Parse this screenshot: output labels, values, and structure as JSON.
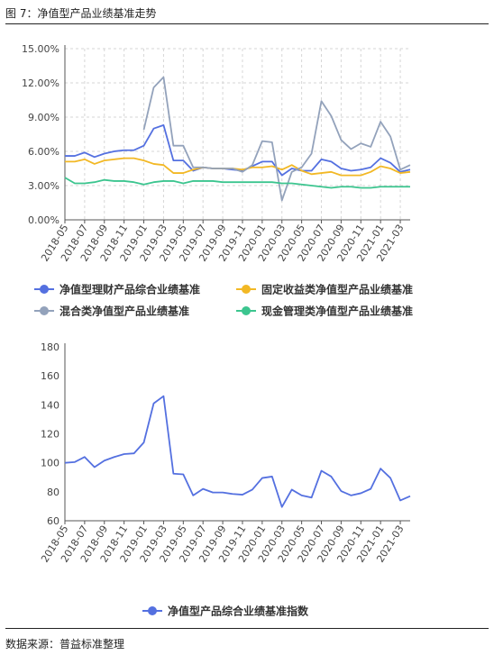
{
  "figure": {
    "title": "图 7：净值型产品业绩基准走势",
    "source": "数据来源：普益标准整理"
  },
  "chart_data": [
    {
      "type": "line",
      "x": [
        "2018-05",
        "2018-06",
        "2018-07",
        "2018-08",
        "2018-09",
        "2018-10",
        "2018-11",
        "2018-12",
        "2019-01",
        "2019-02",
        "2019-03",
        "2019-04",
        "2019-05",
        "2019-06",
        "2019-07",
        "2019-08",
        "2019-09",
        "2019-10",
        "2019-11",
        "2019-12",
        "2020-01",
        "2020-02",
        "2020-03",
        "2020-04",
        "2020-05",
        "2020-06",
        "2020-07",
        "2020-08",
        "2020-09",
        "2020-10",
        "2020-11",
        "2020-12",
        "2021-01",
        "2021-02",
        "2021-03",
        "2021-04"
      ],
      "tick_labels": [
        "2018-05",
        "2018-07",
        "2018-09",
        "2018-11",
        "2019-01",
        "2019-03",
        "2019-05",
        "2019-07",
        "2019-09",
        "2019-11",
        "2020-01",
        "2020-03",
        "2020-05",
        "2020-07",
        "2020-09",
        "2020-11",
        "2021-01",
        "2021-03"
      ],
      "y_ticks": [
        "0.00%",
        "3.00%",
        "6.00%",
        "9.00%",
        "12.00%",
        "15.00%"
      ],
      "ylim": [
        0,
        15
      ],
      "grid": true,
      "legend_position": "bottom",
      "series": [
        {
          "name": "净值型理财产品综合业绩基准",
          "color": "#5470e0",
          "values": [
            5.6,
            5.6,
            5.9,
            5.5,
            5.8,
            6.0,
            6.1,
            6.1,
            6.5,
            8.0,
            8.3,
            5.2,
            5.2,
            4.3,
            4.6,
            4.5,
            4.5,
            4.4,
            4.3,
            4.7,
            5.1,
            5.1,
            3.9,
            4.5,
            4.3,
            4.3,
            5.3,
            5.1,
            4.5,
            4.3,
            4.4,
            4.6,
            5.4,
            5.0,
            4.2,
            4.4
          ]
        },
        {
          "name": "固定收益类净值型产品业绩基准",
          "color": "#f2b825",
          "values": [
            5.1,
            5.1,
            5.3,
            4.9,
            5.2,
            5.3,
            5.4,
            5.4,
            5.2,
            4.9,
            4.8,
            4.1,
            4.1,
            4.4,
            4.6,
            4.5,
            4.5,
            4.5,
            4.4,
            4.6,
            4.6,
            4.7,
            4.4,
            4.8,
            4.3,
            4.0,
            4.1,
            4.2,
            3.9,
            3.9,
            3.9,
            4.2,
            4.7,
            4.5,
            4.1,
            4.2
          ]
        },
        {
          "name": "混合类净值型产品业绩基准",
          "color": "#93a2bb",
          "values": [
            null,
            null,
            null,
            null,
            null,
            null,
            null,
            null,
            7.9,
            11.6,
            12.5,
            6.5,
            6.5,
            4.6,
            4.6,
            4.5,
            4.5,
            4.5,
            4.2,
            4.8,
            6.9,
            6.8,
            1.7,
            4.2,
            4.6,
            5.8,
            10.4,
            9.1,
            7.0,
            6.2,
            6.7,
            6.4,
            8.6,
            7.3,
            4.4,
            4.8
          ]
        },
        {
          "name": "现金管理类净值型产品业绩基准",
          "color": "#3cc58f",
          "values": [
            3.7,
            3.2,
            3.2,
            3.3,
            3.5,
            3.4,
            3.4,
            3.3,
            3.1,
            3.3,
            3.4,
            3.4,
            3.2,
            3.4,
            3.4,
            3.4,
            3.3,
            3.3,
            3.3,
            3.3,
            3.3,
            3.3,
            3.2,
            3.2,
            3.1,
            3.0,
            2.9,
            2.8,
            2.9,
            2.9,
            2.8,
            2.8,
            2.9,
            2.9,
            2.9,
            2.9
          ]
        }
      ]
    },
    {
      "type": "line",
      "x": [
        "2018-05",
        "2018-06",
        "2018-07",
        "2018-08",
        "2018-09",
        "2018-10",
        "2018-11",
        "2018-12",
        "2019-01",
        "2019-02",
        "2019-03",
        "2019-04",
        "2019-05",
        "2019-06",
        "2019-07",
        "2019-08",
        "2019-09",
        "2019-10",
        "2019-11",
        "2019-12",
        "2020-01",
        "2020-02",
        "2020-03",
        "2020-04",
        "2020-05",
        "2020-06",
        "2020-07",
        "2020-08",
        "2020-09",
        "2020-10",
        "2020-11",
        "2020-12",
        "2021-01",
        "2021-02",
        "2021-03",
        "2021-04"
      ],
      "tick_labels": [
        "2018-05",
        "2018-07",
        "2018-09",
        "2018-11",
        "2019-01",
        "2019-03",
        "2019-05",
        "2019-07",
        "2019-09",
        "2019-11",
        "2020-01",
        "2020-03",
        "2020-05",
        "2020-07",
        "2020-09",
        "2020-11",
        "2021-01",
        "2021-03"
      ],
      "y_ticks": [
        "60",
        "80",
        "100",
        "120",
        "140",
        "160",
        "180"
      ],
      "ylim": [
        60,
        180
      ],
      "grid": false,
      "legend_position": "bottom",
      "series": [
        {
          "name": "净值型产品综合业绩基准指数",
          "color": "#5470e0",
          "values": [
            100,
            100.5,
            104,
            97,
            101.5,
            104,
            106,
            106.5,
            114,
            141,
            146,
            92.5,
            92,
            77.5,
            82,
            79.5,
            79.5,
            78.5,
            78,
            81.5,
            89.5,
            90.5,
            69.5,
            81.5,
            77.5,
            76,
            94.5,
            90.5,
            80.5,
            77.5,
            79,
            82,
            96,
            89.5,
            74,
            77
          ]
        }
      ]
    }
  ]
}
